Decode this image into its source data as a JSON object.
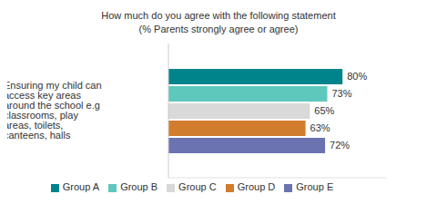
{
  "chart_data": {
    "type": "bar",
    "orientation": "horizontal",
    "title": "How much do you agree with the following statement",
    "subtitle": "(% Parents strongly agree or agree)",
    "categories": [
      "Ensuring my child can access key areas around the school e.g classrooms, play areas, toilets, canteens, halls"
    ],
    "series": [
      {
        "name": "Group A",
        "color": "#00848c",
        "values": [
          80
        ],
        "value_labels": [
          "80%"
        ]
      },
      {
        "name": "Group B",
        "color": "#5ec8bd",
        "values": [
          73
        ],
        "value_labels": [
          "73%"
        ]
      },
      {
        "name": "Group C",
        "color": "#d9d9d9",
        "values": [
          65
        ],
        "value_labels": [
          "65%"
        ]
      },
      {
        "name": "Group D",
        "color": "#d27d2e",
        "values": [
          63
        ],
        "value_labels": [
          "63%"
        ]
      },
      {
        "name": "Group E",
        "color": "#6b74b0",
        "values": [
          72
        ],
        "value_labels": [
          "72%"
        ]
      }
    ],
    "xlim": [
      0,
      100
    ],
    "data_labels": true,
    "tick_labels": "y",
    "legend": "bottom",
    "grid": false
  }
}
